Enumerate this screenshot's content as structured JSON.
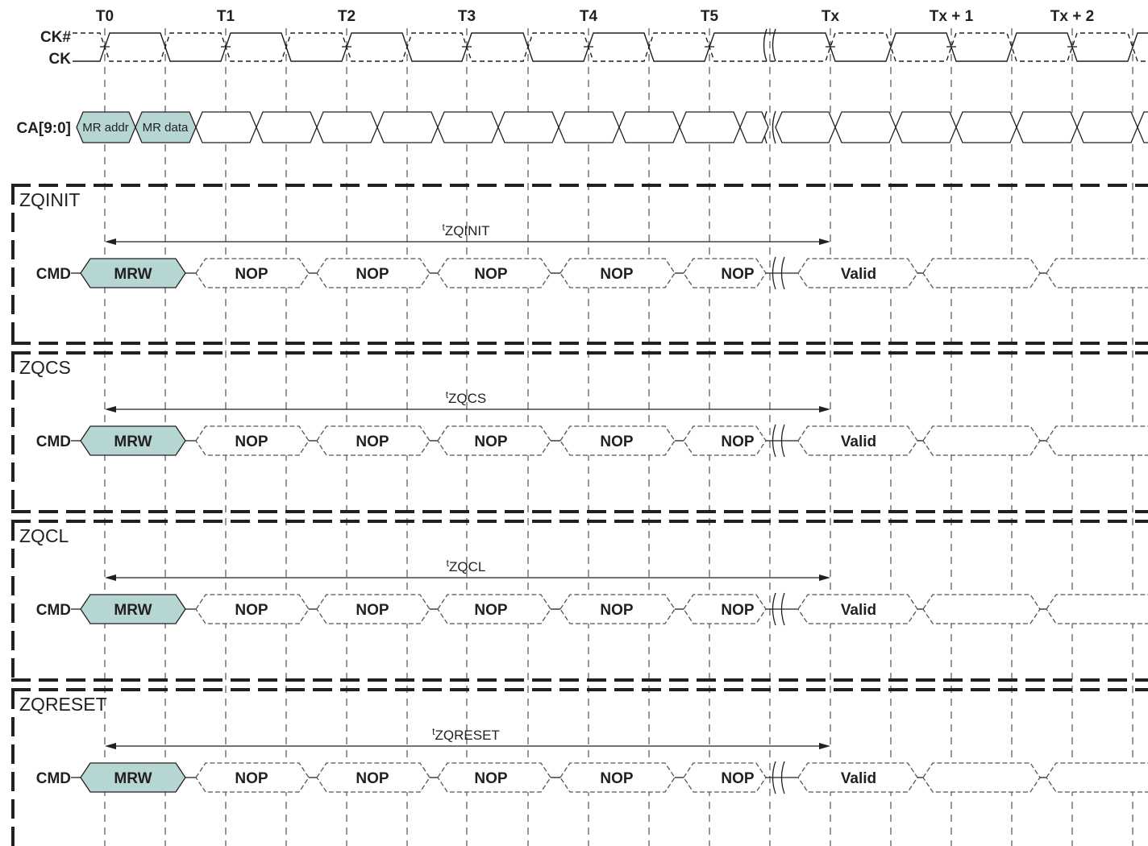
{
  "clock_labels": [
    "T0",
    "T1",
    "T2",
    "T3",
    "T4",
    "T5",
    "Tx",
    "Tx + 1",
    "Tx + 2"
  ],
  "signals": {
    "ck_n": "CK#",
    "ck": "CK",
    "ca": "CA[9:0]",
    "ca_first": "MR addr",
    "ca_second": "MR data"
  },
  "sections": [
    {
      "name": "ZQINIT",
      "timing_prefix": "t",
      "timing_label": "ZQINIT",
      "cmd_label": "CMD",
      "commands": [
        "MRW",
        "NOP",
        "NOP",
        "NOP",
        "NOP",
        "NOP",
        "Valid",
        "",
        ""
      ]
    },
    {
      "name": "ZQCS",
      "timing_prefix": "t",
      "timing_label": "ZQCS",
      "cmd_label": "CMD",
      "commands": [
        "MRW",
        "NOP",
        "NOP",
        "NOP",
        "NOP",
        "NOP",
        "Valid",
        "",
        ""
      ]
    },
    {
      "name": "ZQCL",
      "timing_prefix": "t",
      "timing_label": "ZQCL",
      "cmd_label": "CMD",
      "commands": [
        "MRW",
        "NOP",
        "NOP",
        "NOP",
        "NOP",
        "NOP",
        "Valid",
        "",
        ""
      ]
    },
    {
      "name": "ZQRESET",
      "timing_prefix": "t",
      "timing_label": "ZQRESET",
      "cmd_label": "CMD",
      "commands": [
        "MRW",
        "NOP",
        "NOP",
        "NOP",
        "NOP",
        "NOP",
        "Valid",
        "",
        ""
      ]
    }
  ],
  "colors": {
    "highlight_fill": "#b6d6d4",
    "line": "#231f20",
    "dashed": "#555555"
  }
}
